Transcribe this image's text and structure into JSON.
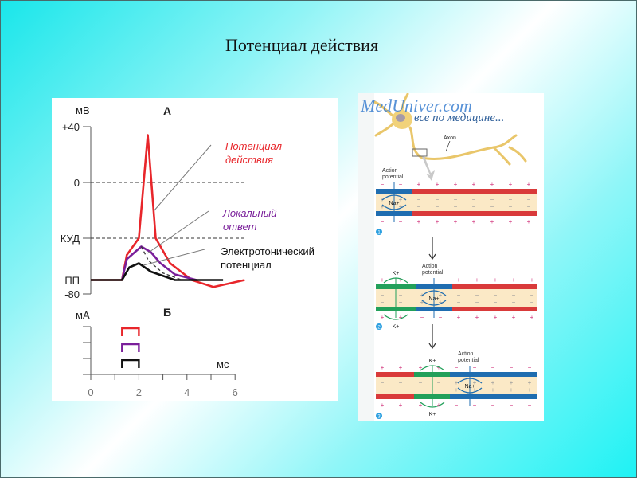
{
  "slide": {
    "title": "Потенциал действия",
    "background_colors": [
      "#19e6ea",
      "#ffffff"
    ]
  },
  "chart_data": {
    "type": "line",
    "panel_a": {
      "title": "А",
      "ylabel": "мВ",
      "y_tick_labels": [
        "+40",
        "0",
        "КУД",
        "ПП",
        "-80"
      ],
      "y_tick_values": [
        40,
        0,
        -40,
        -70,
        -80
      ],
      "ylim": [
        -80,
        40
      ],
      "xlim": [
        0,
        6
      ],
      "dashed_reference_lines": [
        "0",
        "КУД",
        "ПП"
      ],
      "series": [
        {
          "name": "Потенциал действия",
          "color": "#e8262b",
          "x": [
            0,
            1.3,
            1.5,
            2.0,
            2.37,
            2.7,
            3.3,
            4.2,
            5.1,
            6.4
          ],
          "y": [
            -70,
            -70,
            -52,
            -40,
            34,
            -40,
            -58,
            -70,
            -75,
            -70
          ]
        },
        {
          "name": "Локальный ответ",
          "color": "#7a1f9a",
          "x": [
            1.3,
            1.5,
            2.1,
            2.5,
            2.9,
            3.5,
            4.4
          ],
          "y": [
            -70,
            -55,
            -46,
            -50,
            -58,
            -66,
            -70
          ]
        },
        {
          "name": "Электротонический потенциал",
          "color": "#111111",
          "x": [
            0,
            1.3,
            1.6,
            2.0,
            2.5,
            3.5,
            5.5
          ],
          "y": [
            -70,
            -70,
            -61,
            -58,
            -64,
            -70,
            -70
          ]
        },
        {
          "color": "#333333",
          "dashed": true,
          "x": [
            2.1,
            2.4,
            3.0,
            3.8
          ],
          "y": [
            -46,
            -56,
            -65,
            -70
          ]
        }
      ],
      "labels": {
        "action_potential": [
          "Потенциал",
          "действия"
        ],
        "local_response": [
          "Локальный",
          "ответ"
        ],
        "electrotonic": [
          "Электротонический",
          "потенциал"
        ]
      }
    },
    "panel_b": {
      "title": "Б",
      "ylabel": "мА",
      "xlabel": "мс",
      "x_tick_labels": [
        "0",
        "2",
        "4",
        "6"
      ],
      "xlim": [
        0,
        6
      ],
      "stimuli": [
        {
          "color": "#e8262b",
          "start": 1.3,
          "end": 2.0,
          "level": 3
        },
        {
          "color": "#7a1f9a",
          "start": 1.3,
          "end": 2.0,
          "level": 2
        },
        {
          "color": "#111111",
          "start": 1.3,
          "end": 2.0,
          "level": 1
        }
      ]
    }
  },
  "figure_right": {
    "logo": "MedUniver.com",
    "tagline": "все по медицине...",
    "axon_label": "Axon",
    "action_potential_label": [
      "Action",
      "potential"
    ],
    "na_label": "Na+",
    "k_label": "K+",
    "step_numbers": [
      "1",
      "2",
      "3"
    ],
    "colors": {
      "resting": "#d93a3a",
      "depolarized": "#1f6db0",
      "repolarizing": "#22a05a",
      "axoplasm": "#fbe9c6",
      "charge": "#d0307a"
    }
  }
}
